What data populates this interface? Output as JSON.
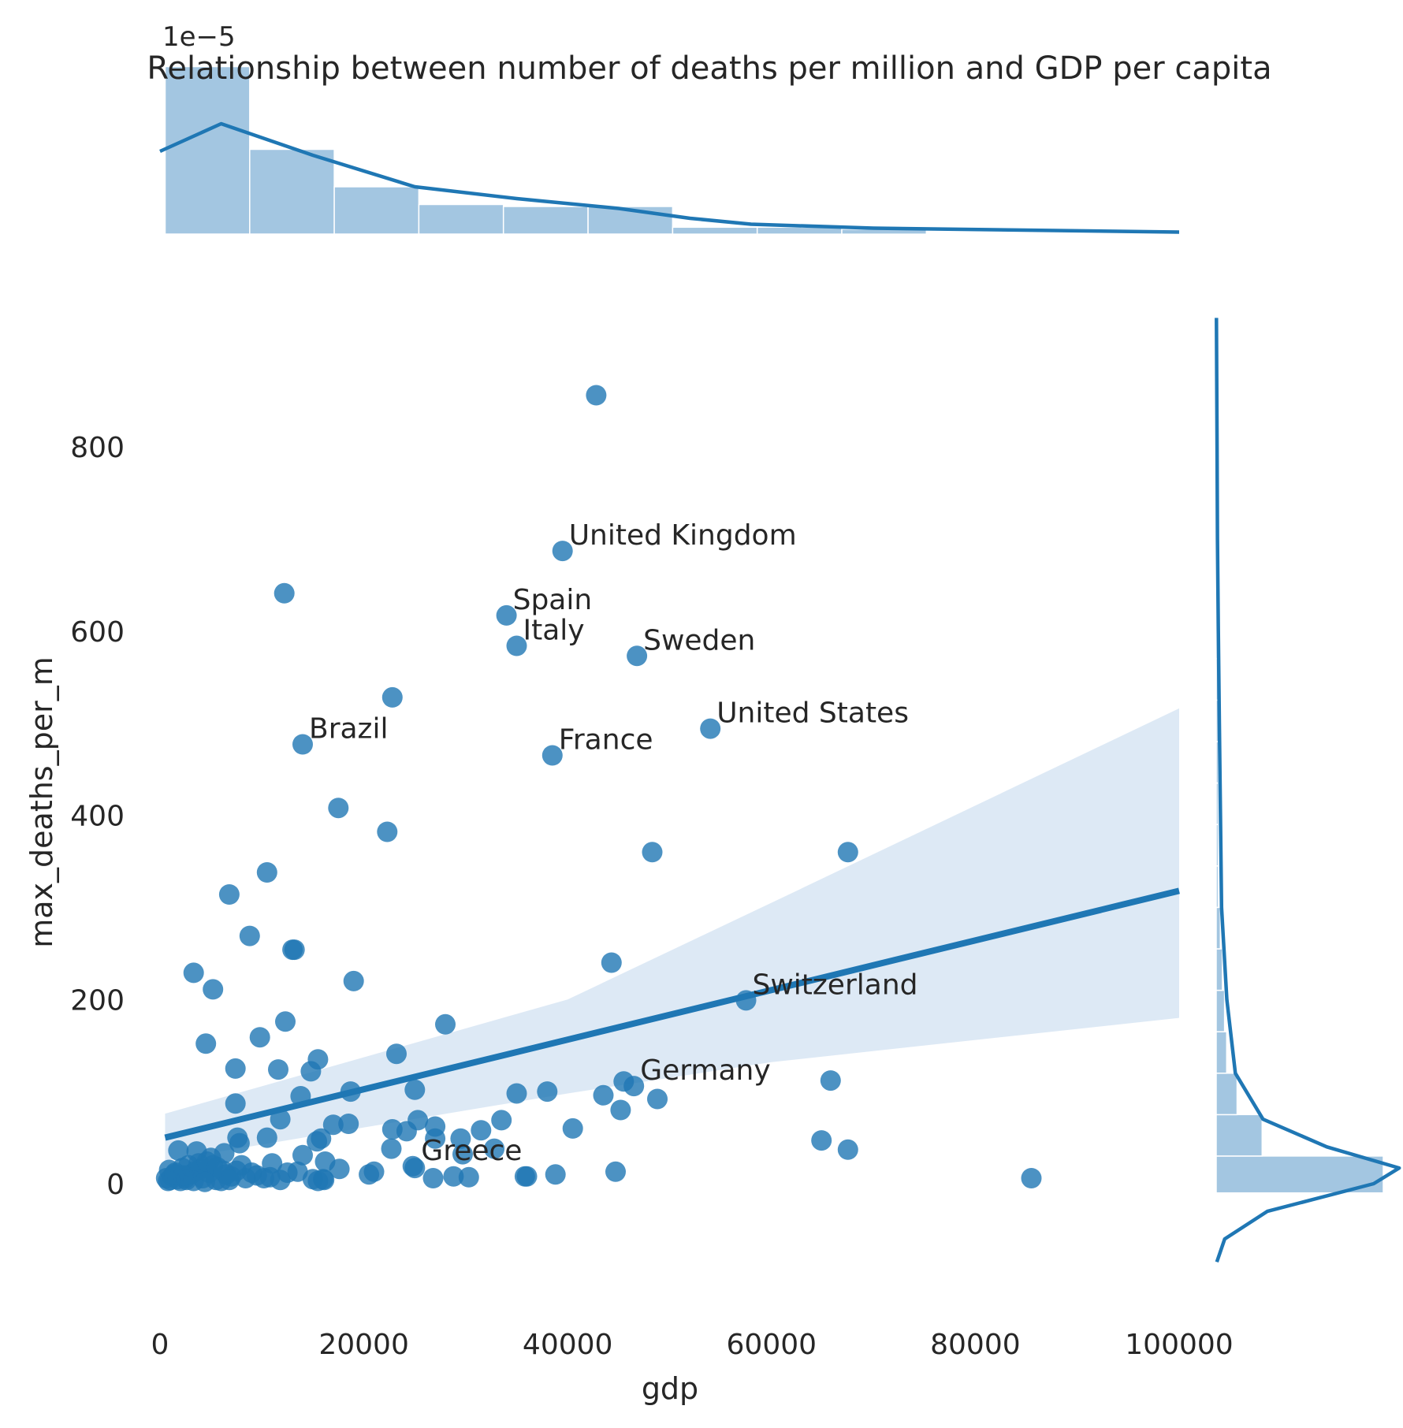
{
  "chart_data": {
    "type": "scatter",
    "title": "Relationship between number of deaths per million and GDP per capita",
    "xlabel": "gdp",
    "ylabel": "max_deaths_per_m",
    "xlim": [
      0,
      100000
    ],
    "ylim": [
      -150,
      940
    ],
    "xticks": [
      "0",
      "20000",
      "40000",
      "60000",
      "80000",
      "100000"
    ],
    "yticks": [
      "0",
      "200",
      "400",
      "600",
      "800"
    ],
    "marginal_offset_label": "1e−5",
    "grid": false,
    "colors": {
      "points": "#1f77b4",
      "band": "#c6dbef",
      "hist": "#8cb8d9"
    },
    "regression": {
      "x": [
        500,
        100000
      ],
      "y": [
        50,
        318
      ],
      "ci_lower_at_max": 180,
      "ci_upper_at_max": 516,
      "ci_lower_at_min": 25,
      "ci_upper_at_min": 76
    },
    "annotations": [
      {
        "text": "United Kingdom",
        "x": 39500,
        "y": 687
      },
      {
        "text": "Spain",
        "x": 34000,
        "y": 617
      },
      {
        "text": "Italy",
        "x": 35000,
        "y": 584
      },
      {
        "text": "Sweden",
        "x": 46800,
        "y": 573
      },
      {
        "text": "United States",
        "x": 54000,
        "y": 494
      },
      {
        "text": "Brazil",
        "x": 14000,
        "y": 477
      },
      {
        "text": "France",
        "x": 38500,
        "y": 465
      },
      {
        "text": "Switzerland",
        "x": 57500,
        "y": 199
      },
      {
        "text": "Germany",
        "x": 46500,
        "y": 106
      },
      {
        "text": "Greece",
        "x": 25000,
        "y": 19
      }
    ],
    "points": [
      [
        42800,
        856
      ],
      [
        39500,
        687
      ],
      [
        12200,
        641
      ],
      [
        34000,
        617
      ],
      [
        35000,
        584
      ],
      [
        46800,
        573
      ],
      [
        22800,
        528
      ],
      [
        54000,
        494
      ],
      [
        14000,
        477
      ],
      [
        38500,
        465
      ],
      [
        17500,
        408
      ],
      [
        22300,
        382
      ],
      [
        48300,
        360
      ],
      [
        67500,
        360
      ],
      [
        10500,
        338
      ],
      [
        6800,
        314
      ],
      [
        8800,
        269
      ],
      [
        13000,
        254
      ],
      [
        13200,
        254
      ],
      [
        44300,
        240
      ],
      [
        3300,
        229
      ],
      [
        5200,
        211
      ],
      [
        19000,
        220
      ],
      [
        57500,
        199
      ],
      [
        12300,
        176
      ],
      [
        28000,
        173
      ],
      [
        9800,
        159
      ],
      [
        4500,
        152
      ],
      [
        23200,
        141
      ],
      [
        15500,
        135
      ],
      [
        7400,
        125
      ],
      [
        11600,
        124
      ],
      [
        14800,
        122
      ],
      [
        45500,
        111
      ],
      [
        65800,
        112
      ],
      [
        46500,
        106
      ],
      [
        25000,
        102
      ],
      [
        18700,
        100
      ],
      [
        35000,
        98
      ],
      [
        38000,
        100
      ],
      [
        43500,
        96
      ],
      [
        48800,
        92
      ],
      [
        13800,
        95
      ],
      [
        7400,
        87
      ],
      [
        45200,
        80
      ],
      [
        11800,
        70
      ],
      [
        33500,
        69
      ],
      [
        17000,
        64
      ],
      [
        18500,
        65
      ],
      [
        25300,
        69
      ],
      [
        27000,
        62
      ],
      [
        31500,
        58
      ],
      [
        40500,
        60
      ],
      [
        22800,
        59
      ],
      [
        24200,
        57
      ],
      [
        29500,
        49
      ],
      [
        10500,
        50
      ],
      [
        7600,
        50
      ],
      [
        15800,
        49
      ],
      [
        15400,
        46
      ],
      [
        64900,
        47
      ],
      [
        67500,
        37
      ],
      [
        7800,
        44
      ],
      [
        22700,
        38
      ],
      [
        32800,
        38
      ],
      [
        1800,
        36
      ],
      [
        3600,
        35
      ],
      [
        6300,
        33
      ],
      [
        14000,
        31
      ],
      [
        27000,
        49
      ],
      [
        29700,
        32
      ],
      [
        5000,
        28
      ],
      [
        11000,
        22
      ],
      [
        16200,
        24
      ],
      [
        8000,
        20
      ],
      [
        24800,
        19
      ],
      [
        25000,
        17
      ],
      [
        17600,
        16
      ],
      [
        13500,
        13
      ],
      [
        21000,
        13
      ],
      [
        20500,
        10
      ],
      [
        44700,
        13
      ],
      [
        38800,
        10
      ],
      [
        35800,
        8
      ],
      [
        36000,
        8
      ],
      [
        85500,
        6
      ],
      [
        26800,
        6
      ],
      [
        28800,
        8
      ],
      [
        30300,
        7
      ],
      [
        9500,
        9
      ],
      [
        10800,
        7
      ],
      [
        11800,
        4
      ],
      [
        15000,
        5
      ],
      [
        16000,
        5
      ],
      [
        15500,
        3
      ],
      [
        16100,
        4
      ],
      [
        8400,
        6
      ],
      [
        6000,
        3
      ],
      [
        5500,
        4
      ],
      [
        2000,
        3
      ],
      [
        800,
        3
      ],
      [
        1200,
        8
      ],
      [
        2500,
        6
      ],
      [
        3000,
        10
      ],
      [
        3500,
        14
      ],
      [
        4000,
        16
      ],
      [
        4200,
        6
      ],
      [
        4800,
        12
      ],
      [
        5200,
        20
      ],
      [
        6500,
        10
      ],
      [
        7000,
        8
      ],
      [
        7500,
        14
      ],
      [
        1500,
        12
      ],
      [
        900,
        15
      ],
      [
        2200,
        17
      ],
      [
        2800,
        20
      ],
      [
        3800,
        22
      ],
      [
        4600,
        24
      ],
      [
        5600,
        18
      ],
      [
        6200,
        14
      ],
      [
        600,
        6
      ],
      [
        1000,
        4
      ],
      [
        1700,
        5
      ],
      [
        2600,
        4
      ],
      [
        3300,
        3
      ],
      [
        4400,
        2
      ],
      [
        9000,
        12
      ],
      [
        10200,
        6
      ],
      [
        12500,
        12
      ],
      [
        6800,
        4
      ],
      [
        1400,
        10
      ],
      [
        2300,
        9
      ]
    ],
    "top_hist": {
      "bin_edges": [
        500,
        8800,
        17100,
        25400,
        33700,
        42000,
        50300,
        58600,
        66900,
        75200
      ],
      "heights": [
        8.5,
        4.3,
        2.4,
        1.5,
        1.4,
        1.4,
        0.35,
        0.35,
        0.25
      ]
    },
    "top_kde": {
      "x": [
        0,
        6000,
        15000,
        25000,
        35000,
        45000,
        52000,
        58000,
        70000,
        100000
      ],
      "y": [
        4.2,
        5.6,
        4.0,
        2.4,
        1.8,
        1.3,
        0.8,
        0.5,
        0.3,
        0.1
      ]
    },
    "right_hist": {
      "bin_edges": [
        -10,
        30,
        75,
        120,
        165,
        210,
        255,
        300,
        345,
        390,
        435,
        480,
        525,
        570,
        615,
        660,
        705,
        750,
        795,
        840,
        885
      ],
      "counts": [
        80,
        22,
        10,
        5,
        4,
        3,
        2,
        1,
        1,
        1,
        1,
        1,
        1,
        1,
        1,
        1,
        0,
        0,
        0,
        0
      ]
    },
    "right_kde": {
      "y": [
        -85,
        -60,
        -30,
        0,
        17,
        40,
        70,
        120,
        200,
        300,
        400,
        500,
        600,
        700,
        800,
        940
      ],
      "x": [
        0.3,
        4,
        24,
        74,
        86,
        52,
        22,
        9,
        5,
        2.5,
        2,
        1.5,
        1,
        0.6,
        0.4,
        0.1
      ]
    }
  }
}
